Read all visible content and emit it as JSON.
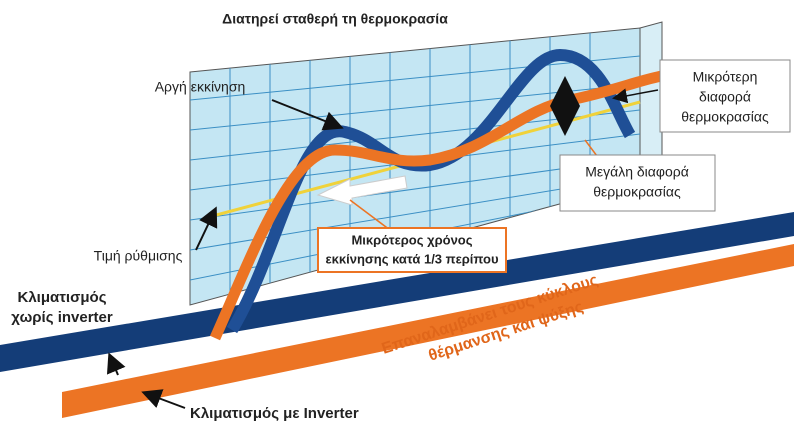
{
  "title": "Διατηρεί σταθερή τη θερμοκρασία",
  "labels": {
    "slow_start": "Αργή εκκίνηση",
    "smaller_difference": [
      "Μικρότερη",
      "διαφορά",
      "θερμοκρασίας"
    ],
    "large_difference": [
      "Μεγάλη διαφορά",
      "θερμοκρασίας"
    ],
    "set_value": "Τιμή ρύθμισης",
    "shorter_start": [
      "Μικρότερος χρόνος",
      "εκκίνησης κατά 1/3 περίπου"
    ],
    "without_inverter": [
      "Κλιματισμός",
      "χωρίς inverter"
    ],
    "cycles": [
      "Επαναλαμβάνει τους κύκλους",
      "θέρμανσης και ψύξης"
    ],
    "with_inverter": "Κλιματισμός με Inverter"
  }
}
